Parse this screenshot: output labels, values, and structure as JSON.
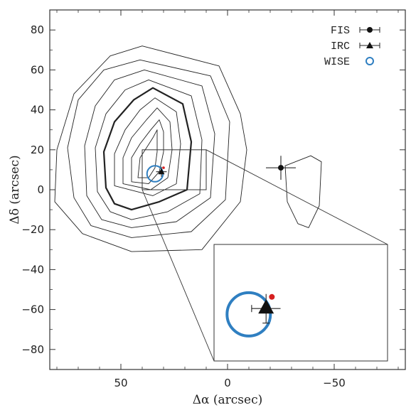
{
  "chart_data": {
    "type": "scatter",
    "xlabel": "Δα (arcsec)",
    "ylabel": "Δδ (arcsec)",
    "xlim": [
      90,
      -90
    ],
    "ylim": [
      -90,
      90
    ],
    "xticks": [
      50,
      0,
      -50
    ],
    "xtick_labels": [
      "50",
      "0",
      "−50"
    ],
    "yticks": [
      80,
      60,
      40,
      20,
      0,
      -20,
      -40,
      -60,
      -80
    ],
    "ytick_labels": [
      "80",
      "60",
      "40",
      "20",
      "0",
      "−20",
      "−40",
      "−60",
      "−80"
    ],
    "grid": false,
    "legend": {
      "placement": "top-right",
      "entries": [
        {
          "label": "FIS",
          "marker": "filled-circle-errorbar"
        },
        {
          "label": "IRC",
          "marker": "filled-triangle-errorbar"
        },
        {
          "label": "WISE",
          "marker": "open-circle"
        }
      ]
    },
    "points": {
      "FIS": {
        "x": -25,
        "y": 11,
        "xerr": 7,
        "yerr": 6
      },
      "IRC": {
        "x": 31,
        "y": 9,
        "xerr": 2.5,
        "yerr": 2.5
      },
      "WISE": {
        "x": 34,
        "y": 8,
        "radius": 5
      },
      "red": {
        "x": 30,
        "y": 11
      }
    },
    "inset_region": {
      "xlim": [
        40,
        10
      ],
      "ylim": [
        0,
        20
      ]
    },
    "contours": [
      {
        "weight": "thin",
        "points": [
          [
            42,
            6
          ],
          [
            41,
            16
          ],
          [
            38,
            21
          ],
          [
            35,
            26
          ],
          [
            33,
            30
          ],
          [
            33,
            26
          ],
          [
            33,
            19
          ],
          [
            34,
            11
          ],
          [
            37,
            6
          ]
        ]
      },
      {
        "weight": "thin",
        "points": [
          [
            45,
            4
          ],
          [
            45,
            16
          ],
          [
            41,
            23
          ],
          [
            36,
            30
          ],
          [
            32,
            35
          ],
          [
            30,
            29
          ],
          [
            30,
            19
          ],
          [
            32,
            9
          ],
          [
            37,
            3
          ]
        ]
      },
      {
        "weight": "thin",
        "points": [
          [
            49,
            3
          ],
          [
            49,
            16
          ],
          [
            45,
            26
          ],
          [
            38,
            35
          ],
          [
            33,
            41
          ],
          [
            27,
            34
          ],
          [
            26,
            20
          ],
          [
            28,
            6
          ],
          [
            36,
            0
          ]
        ]
      },
      {
        "weight": "thin",
        "points": [
          [
            53,
            2
          ],
          [
            53,
            18
          ],
          [
            48,
            30
          ],
          [
            41,
            40
          ],
          [
            34,
            46
          ],
          [
            24,
            39
          ],
          [
            22,
            23
          ],
          [
            24,
            3
          ],
          [
            35,
            -3
          ]
        ]
      },
      {
        "weight": "thick",
        "points": [
          [
            57,
            1
          ],
          [
            58,
            19
          ],
          [
            53,
            34
          ],
          [
            44,
            45
          ],
          [
            35,
            51
          ],
          [
            21,
            43
          ],
          [
            17,
            24
          ],
          [
            19,
            0
          ],
          [
            32,
            -6
          ],
          [
            45,
            -10
          ],
          [
            53,
            -7
          ]
        ]
      },
      {
        "weight": "thin",
        "points": [
          [
            61,
            -1
          ],
          [
            62,
            21
          ],
          [
            57,
            38
          ],
          [
            48,
            50
          ],
          [
            37,
            55
          ],
          [
            17,
            47
          ],
          [
            12,
            25
          ],
          [
            13,
            -2
          ],
          [
            28,
            -11
          ],
          [
            45,
            -15
          ],
          [
            55,
            -11
          ]
        ]
      },
      {
        "weight": "thin",
        "points": [
          [
            66,
            -3
          ],
          [
            67,
            22
          ],
          [
            62,
            42
          ],
          [
            53,
            55
          ],
          [
            39,
            60
          ],
          [
            12,
            52
          ],
          [
            6,
            28
          ],
          [
            8,
            -4
          ],
          [
            24,
            -16
          ],
          [
            45,
            -19
          ],
          [
            59,
            -15
          ]
        ]
      },
      {
        "weight": "thin",
        "points": [
          [
            72,
            -4
          ],
          [
            75,
            21
          ],
          [
            70,
            45
          ],
          [
            58,
            60
          ],
          [
            41,
            65
          ],
          [
            8,
            57
          ],
          [
            -1,
            34
          ],
          [
            1,
            -5
          ],
          [
            17,
            -21
          ],
          [
            45,
            -24
          ],
          [
            64,
            -18
          ]
        ]
      },
      {
        "weight": "thin",
        "points": [
          [
            81,
            -6
          ],
          [
            80,
            20
          ],
          [
            72,
            48
          ],
          [
            55,
            67
          ],
          [
            40,
            72
          ],
          [
            4,
            62
          ],
          [
            -6,
            38
          ],
          [
            -9,
            20
          ],
          [
            -6,
            -6
          ],
          [
            12,
            -30
          ],
          [
            45,
            -31
          ],
          [
            68,
            -22
          ]
        ]
      },
      {
        "weight": "thin",
        "points": [
          [
            -27,
            12
          ],
          [
            -28,
            -6
          ],
          [
            -33,
            -17
          ],
          [
            -38,
            -19
          ],
          [
            -43,
            -8
          ],
          [
            -44,
            14
          ],
          [
            -39,
            17
          ]
        ]
      }
    ]
  }
}
